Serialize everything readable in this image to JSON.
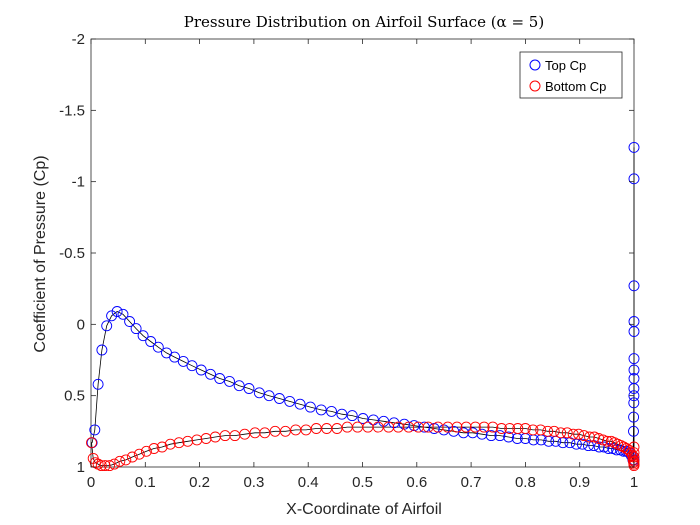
{
  "chart_data": {
    "type": "scatter",
    "title": "Pressure Distribution on Airfoil Surface (α = 5)",
    "xlabel": "X-Coordinate of Airfoil",
    "ylabel": "Coefficient of Pressure (Cp)",
    "xlim": [
      0,
      1
    ],
    "ylim": [
      -2,
      1
    ],
    "y_reversed": true,
    "grid": false,
    "legend_position": "top-right",
    "xticks": [
      "0",
      "0.1",
      "0.2",
      "0.3",
      "0.4",
      "0.5",
      "0.6",
      "0.7",
      "0.8",
      "0.9",
      "1"
    ],
    "yticks": [
      "-2",
      "-1.5",
      "-1",
      "-0.5",
      "0",
      "0.5",
      "1"
    ],
    "series": [
      {
        "name": "Top Cp",
        "color": "#0000ff",
        "marker": "circle",
        "x": [
          0.002,
          0.007,
          0.013,
          0.02,
          0.029,
          0.038,
          0.048,
          0.059,
          0.071,
          0.083,
          0.096,
          0.11,
          0.124,
          0.139,
          0.154,
          0.17,
          0.186,
          0.203,
          0.22,
          0.237,
          0.255,
          0.273,
          0.291,
          0.31,
          0.328,
          0.347,
          0.366,
          0.385,
          0.404,
          0.424,
          0.443,
          0.462,
          0.481,
          0.501,
          0.52,
          0.539,
          0.558,
          0.577,
          0.595,
          0.614,
          0.632,
          0.65,
          0.668,
          0.686,
          0.703,
          0.72,
          0.737,
          0.753,
          0.769,
          0.785,
          0.8,
          0.815,
          0.829,
          0.843,
          0.856,
          0.869,
          0.882,
          0.894,
          0.905,
          0.916,
          0.926,
          0.936,
          0.945,
          0.953,
          0.961,
          0.968,
          0.975,
          0.981,
          0.986,
          0.991,
          0.995,
          0.998,
          0.999,
          0.9993,
          0.9996,
          0.9998,
          0.9999,
          1.0,
          1.0,
          1.0,
          1.0,
          1.0,
          1.0,
          1.0,
          1.0,
          1.0
        ],
        "y": [
          0.83,
          0.74,
          0.42,
          0.18,
          0.01,
          -0.06,
          -0.09,
          -0.07,
          -0.02,
          0.03,
          0.08,
          0.12,
          0.16,
          0.2,
          0.23,
          0.26,
          0.29,
          0.32,
          0.35,
          0.38,
          0.4,
          0.43,
          0.45,
          0.48,
          0.5,
          0.52,
          0.54,
          0.56,
          0.58,
          0.6,
          0.61,
          0.63,
          0.64,
          0.66,
          0.67,
          0.68,
          0.69,
          0.7,
          0.71,
          0.72,
          0.73,
          0.74,
          0.75,
          0.76,
          0.76,
          0.77,
          0.78,
          0.78,
          0.79,
          0.8,
          0.8,
          0.81,
          0.81,
          0.82,
          0.82,
          0.83,
          0.83,
          0.84,
          0.84,
          0.85,
          0.85,
          0.86,
          0.86,
          0.87,
          0.87,
          0.88,
          0.88,
          0.89,
          0.89,
          0.9,
          0.92,
          0.95,
          0.75,
          0.65,
          0.55,
          0.5,
          0.45,
          0.38,
          0.32,
          0.24,
          0.05,
          -0.02,
          -0.27,
          -1.02,
          -1.24,
          0.95
        ]
      },
      {
        "name": "Bottom Cp",
        "color": "#ff0000",
        "marker": "circle",
        "x": [
          0.001,
          0.004,
          0.008,
          0.013,
          0.019,
          0.026,
          0.034,
          0.043,
          0.053,
          0.064,
          0.076,
          0.089,
          0.102,
          0.116,
          0.131,
          0.146,
          0.162,
          0.178,
          0.195,
          0.212,
          0.229,
          0.247,
          0.265,
          0.283,
          0.302,
          0.32,
          0.339,
          0.358,
          0.377,
          0.396,
          0.415,
          0.434,
          0.453,
          0.472,
          0.491,
          0.51,
          0.529,
          0.548,
          0.566,
          0.585,
          0.603,
          0.621,
          0.639,
          0.657,
          0.674,
          0.691,
          0.708,
          0.724,
          0.74,
          0.756,
          0.771,
          0.786,
          0.8,
          0.814,
          0.828,
          0.841,
          0.853,
          0.865,
          0.877,
          0.888,
          0.898,
          0.908,
          0.918,
          0.927,
          0.935,
          0.943,
          0.951,
          0.958,
          0.964,
          0.97,
          0.976,
          0.981,
          0.986,
          0.99,
          0.994,
          0.997,
          0.9985,
          0.9995,
          1.0,
          1.0,
          1.0,
          1.0,
          1.0,
          1.0
        ],
        "y": [
          0.83,
          0.94,
          0.97,
          0.98,
          0.99,
          0.99,
          0.99,
          0.98,
          0.96,
          0.95,
          0.93,
          0.91,
          0.89,
          0.87,
          0.86,
          0.84,
          0.83,
          0.82,
          0.81,
          0.8,
          0.79,
          0.78,
          0.78,
          0.77,
          0.76,
          0.76,
          0.75,
          0.75,
          0.74,
          0.74,
          0.73,
          0.73,
          0.73,
          0.72,
          0.72,
          0.72,
          0.72,
          0.72,
          0.72,
          0.72,
          0.72,
          0.72,
          0.72,
          0.72,
          0.72,
          0.72,
          0.72,
          0.72,
          0.72,
          0.73,
          0.73,
          0.73,
          0.73,
          0.74,
          0.74,
          0.75,
          0.75,
          0.76,
          0.76,
          0.77,
          0.77,
          0.78,
          0.79,
          0.79,
          0.8,
          0.81,
          0.82,
          0.82,
          0.83,
          0.84,
          0.85,
          0.86,
          0.87,
          0.88,
          0.9,
          0.92,
          0.95,
          0.97,
          0.99,
          0.98,
          0.96,
          0.93,
          0.9,
          0.86
        ]
      }
    ]
  }
}
